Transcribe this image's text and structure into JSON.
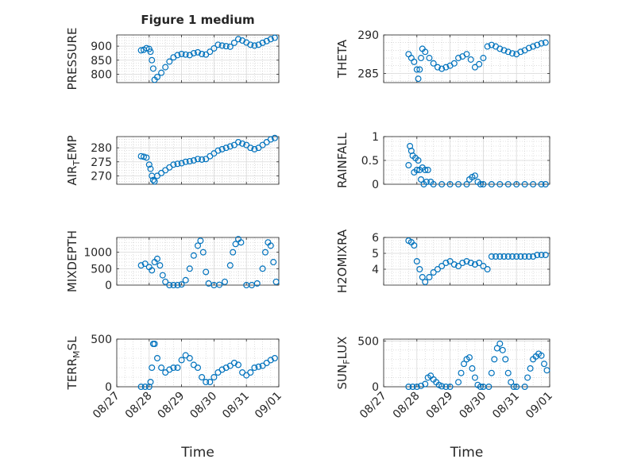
{
  "figure": {
    "title": "Figure 1 medium",
    "xlabel": "Time",
    "date_ticks": [
      "08/27",
      "08/28",
      "08/29",
      "08/30",
      "08/31",
      "09/01"
    ]
  },
  "chart_data": [
    {
      "type": "scatter",
      "ylabel": "PRESSURE",
      "ylim": [
        770,
        940
      ],
      "yticks": [
        800,
        850,
        900
      ],
      "ytick_labels": [
        "800",
        "850",
        "900"
      ],
      "xlim": [
        "08/27",
        "09/01"
      ],
      "x": [
        "08/27 18:00",
        "08/27 20:00",
        "08/27 22:00",
        "08/28 00:00",
        "08/28 01:00",
        "08/28 02:00",
        "08/28 03:00",
        "08/28 04:00",
        "08/28 06:00",
        "08/28 09:00",
        "08/28 12:00",
        "08/28 15:00",
        "08/28 18:00",
        "08/28 21:00",
        "08/29 00:00",
        "08/29 03:00",
        "08/29 06:00",
        "08/29 09:00",
        "08/29 12:00",
        "08/29 15:00",
        "08/29 18:00",
        "08/29 21:00",
        "08/30 00:00",
        "08/30 03:00",
        "08/30 06:00",
        "08/30 09:00",
        "08/30 12:00",
        "08/30 15:00",
        "08/30 18:00",
        "08/30 21:00",
        "08/31 00:00",
        "08/31 03:00",
        "08/31 06:00",
        "08/31 09:00",
        "08/31 12:00",
        "08/31 15:00",
        "08/31 18:00",
        "08/31 21:00"
      ],
      "y": [
        885,
        887,
        893,
        890,
        880,
        850,
        820,
        780,
        790,
        805,
        825,
        845,
        860,
        868,
        872,
        870,
        868,
        875,
        878,
        872,
        870,
        880,
        892,
        905,
        902,
        900,
        898,
        912,
        925,
        920,
        913,
        905,
        902,
        905,
        912,
        918,
        925,
        930
      ],
      "grid": true,
      "minor_grid": true,
      "color": "#0072BD",
      "marker": "open-circle"
    },
    {
      "type": "scatter",
      "ylabel": "THETA",
      "ylim": [
        283.8,
        290
      ],
      "yticks": [
        285,
        290
      ],
      "ytick_labels": [
        "285",
        "290"
      ],
      "xlim": [
        "08/27",
        "09/01"
      ],
      "x": [
        "08/27 18:00",
        "08/27 20:00",
        "08/27 22:00",
        "08/28 00:00",
        "08/28 01:00",
        "08/28 02:00",
        "08/28 03:00",
        "08/28 04:00",
        "08/28 06:00",
        "08/28 09:00",
        "08/28 12:00",
        "08/28 15:00",
        "08/28 18:00",
        "08/28 21:00",
        "08/29 00:00",
        "08/29 03:00",
        "08/29 06:00",
        "08/29 09:00",
        "08/29 12:00",
        "08/29 15:00",
        "08/29 18:00",
        "08/29 21:00",
        "08/30 00:00",
        "08/30 03:00",
        "08/30 06:00",
        "08/30 09:00",
        "08/30 12:00",
        "08/30 15:00",
        "08/30 18:00",
        "08/30 21:00",
        "08/31 00:00",
        "08/31 03:00",
        "08/31 06:00",
        "08/31 09:00",
        "08/31 12:00",
        "08/31 15:00",
        "08/31 18:00",
        "08/31 21:00"
      ],
      "y": [
        287.5,
        287,
        286.5,
        285.5,
        284.3,
        285.5,
        287,
        288.2,
        287.8,
        287,
        286.3,
        285.8,
        285.6,
        285.8,
        286,
        286.3,
        287,
        287.2,
        287.5,
        286.8,
        285.8,
        286.2,
        287,
        288.5,
        288.7,
        288.5,
        288.2,
        288,
        287.8,
        287.6,
        287.5,
        287.8,
        288,
        288.3,
        288.5,
        288.7,
        288.9,
        289
      ],
      "grid": true,
      "minor_grid": true,
      "color": "#0072BD",
      "marker": "open-circle"
    },
    {
      "type": "scatter",
      "ylabel": "AIR_TEMP",
      "ylim": [
        267,
        284
      ],
      "yticks": [
        270,
        275,
        280
      ],
      "ytick_labels": [
        "270",
        "275",
        "280"
      ],
      "xlim": [
        "08/27",
        "09/01"
      ],
      "x": [
        "08/27 18:00",
        "08/27 20:00",
        "08/27 22:00",
        "08/28 00:00",
        "08/28 01:00",
        "08/28 02:00",
        "08/28 03:00",
        "08/28 04:00",
        "08/28 06:00",
        "08/28 09:00",
        "08/28 12:00",
        "08/28 15:00",
        "08/28 18:00",
        "08/28 21:00",
        "08/29 00:00",
        "08/29 03:00",
        "08/29 06:00",
        "08/29 09:00",
        "08/29 12:00",
        "08/29 15:00",
        "08/29 18:00",
        "08/29 21:00",
        "08/30 00:00",
        "08/30 03:00",
        "08/30 06:00",
        "08/30 09:00",
        "08/30 12:00",
        "08/30 15:00",
        "08/30 18:00",
        "08/30 21:00",
        "08/31 00:00",
        "08/31 03:00",
        "08/31 06:00",
        "08/31 09:00",
        "08/31 12:00",
        "08/31 15:00",
        "08/31 18:00",
        "08/31 21:00"
      ],
      "y": [
        277,
        276.8,
        276.5,
        274,
        272.5,
        270,
        268.5,
        268,
        270,
        271,
        272,
        273,
        274,
        274.3,
        274.5,
        275,
        275.2,
        275.5,
        276,
        275.8,
        276,
        277,
        278,
        279,
        279.5,
        280,
        280.5,
        281,
        282,
        281.5,
        281,
        280,
        279.5,
        280,
        281,
        282,
        283,
        283.5
      ],
      "grid": true,
      "minor_grid": true,
      "color": "#0072BD",
      "marker": "open-circle"
    },
    {
      "type": "scatter",
      "ylabel": "RAINFALL",
      "ylim": [
        0,
        1
      ],
      "yticks": [
        0,
        0.5,
        1
      ],
      "ytick_labels": [
        "0",
        "0.5",
        "1"
      ],
      "xlim": [
        "08/27",
        "09/01"
      ],
      "x": [
        "08/27 18:00",
        "08/27 19:00",
        "08/27 20:00",
        "08/27 21:00",
        "08/27 22:00",
        "08/27 23:00",
        "08/28 00:00",
        "08/28 01:00",
        "08/28 02:00",
        "08/28 03:00",
        "08/28 04:00",
        "08/28 05:00",
        "08/28 06:00",
        "08/28 07:00",
        "08/28 08:00",
        "08/28 10:00",
        "08/28 12:00",
        "08/28 18:00",
        "08/29 00:00",
        "08/29 06:00",
        "08/29 12:00",
        "08/29 14:00",
        "08/29 16:00",
        "08/29 18:00",
        "08/29 20:00",
        "08/29 22:00",
        "08/30 00:00",
        "08/30 06:00",
        "08/30 12:00",
        "08/30 18:00",
        "08/31 00:00",
        "08/31 06:00",
        "08/31 12:00",
        "08/31 18:00",
        "08/31 21:00"
      ],
      "y": [
        0.4,
        0.8,
        0.7,
        0.6,
        0.25,
        0.55,
        0.3,
        0.5,
        0.3,
        0.1,
        0.35,
        0,
        0.3,
        0.05,
        0.3,
        0.05,
        0,
        0,
        0,
        0,
        0,
        0.1,
        0.15,
        0.18,
        0.05,
        0,
        0,
        0,
        0,
        0,
        0,
        0,
        0,
        0,
        0
      ],
      "grid": true,
      "minor_grid": true,
      "color": "#0072BD",
      "marker": "open-circle"
    },
    {
      "type": "scatter",
      "ylabel": "MIXDEPTH",
      "ylim": [
        0,
        1450
      ],
      "yticks": [
        0,
        500,
        1000
      ],
      "ytick_labels": [
        "0",
        "500",
        "1000"
      ],
      "xlim": [
        "08/27",
        "09/01"
      ],
      "x": [
        "08/27 18:00",
        "08/27 21:00",
        "08/28 00:00",
        "08/28 02:00",
        "08/28 04:00",
        "08/28 06:00",
        "08/28 08:00",
        "08/28 10:00",
        "08/28 12:00",
        "08/28 15:00",
        "08/28 18:00",
        "08/28 21:00",
        "08/29 00:00",
        "08/29 03:00",
        "08/29 06:00",
        "08/29 09:00",
        "08/29 12:00",
        "08/29 14:00",
        "08/29 16:00",
        "08/29 18:00",
        "08/29 20:00",
        "08/30 00:00",
        "08/30 04:00",
        "08/30 08:00",
        "08/30 12:00",
        "08/30 14:00",
        "08/30 16:00",
        "08/30 18:00",
        "08/30 20:00",
        "08/31 00:00",
        "08/31 04:00",
        "08/31 08:00",
        "08/31 12:00",
        "08/31 14:00",
        "08/31 16:00",
        "08/31 18:00",
        "08/31 20:00",
        "08/31 22:00"
      ],
      "y": [
        600,
        650,
        550,
        450,
        700,
        800,
        600,
        300,
        100,
        0,
        0,
        0,
        20,
        150,
        500,
        900,
        1200,
        1350,
        1000,
        400,
        50,
        0,
        10,
        100,
        600,
        1000,
        1250,
        1400,
        1300,
        0,
        0,
        50,
        500,
        1000,
        1300,
        1200,
        700,
        100
      ],
      "grid": true,
      "minor_grid": true,
      "color": "#0072BD",
      "marker": "open-circle"
    },
    {
      "type": "scatter",
      "ylabel": "H2OMIXRA",
      "ylim": [
        3,
        6
      ],
      "yticks": [
        4,
        5,
        6
      ],
      "ytick_labels": [
        "4",
        "5",
        "6"
      ],
      "xlim": [
        "08/27",
        "09/01"
      ],
      "x": [
        "08/27 18:00",
        "08/27 20:00",
        "08/27 22:00",
        "08/28 00:00",
        "08/28 02:00",
        "08/28 04:00",
        "08/28 06:00",
        "08/28 09:00",
        "08/28 12:00",
        "08/28 15:00",
        "08/28 18:00",
        "08/28 21:00",
        "08/29 00:00",
        "08/29 03:00",
        "08/29 06:00",
        "08/29 09:00",
        "08/29 12:00",
        "08/29 15:00",
        "08/29 18:00",
        "08/29 21:00",
        "08/30 00:00",
        "08/30 03:00",
        "08/30 06:00",
        "08/30 09:00",
        "08/30 12:00",
        "08/30 15:00",
        "08/30 18:00",
        "08/30 21:00",
        "08/31 00:00",
        "08/31 03:00",
        "08/31 06:00",
        "08/31 09:00",
        "08/31 12:00",
        "08/31 15:00",
        "08/31 18:00",
        "08/31 21:00"
      ],
      "y": [
        5.8,
        5.7,
        5.5,
        4.5,
        4,
        3.5,
        3.2,
        3.5,
        3.8,
        4,
        4.2,
        4.4,
        4.5,
        4.3,
        4.2,
        4.4,
        4.5,
        4.4,
        4.3,
        4.4,
        4.2,
        4,
        4.8,
        4.8,
        4.8,
        4.8,
        4.8,
        4.8,
        4.8,
        4.8,
        4.8,
        4.8,
        4.8,
        4.9,
        4.9,
        4.9
      ],
      "grid": true,
      "minor_grid": true,
      "color": "#0072BD",
      "marker": "open-circle"
    },
    {
      "type": "scatter",
      "ylabel": "TERR_MSL",
      "ylim": [
        0,
        500
      ],
      "yticks": [
        0,
        500
      ],
      "ytick_labels": [
        "0",
        "500"
      ],
      "xlim": [
        "08/27",
        "09/01"
      ],
      "x": [
        "08/27 18:00",
        "08/27 21:00",
        "08/28 00:00",
        "08/28 01:00",
        "08/28 02:00",
        "08/28 03:00",
        "08/28 04:00",
        "08/28 06:00",
        "08/28 09:00",
        "08/28 12:00",
        "08/28 15:00",
        "08/28 18:00",
        "08/28 21:00",
        "08/29 00:00",
        "08/29 03:00",
        "08/29 06:00",
        "08/29 09:00",
        "08/29 12:00",
        "08/29 15:00",
        "08/29 18:00",
        "08/29 21:00",
        "08/30 00:00",
        "08/30 03:00",
        "08/30 06:00",
        "08/30 09:00",
        "08/30 12:00",
        "08/30 15:00",
        "08/30 18:00",
        "08/30 21:00",
        "08/31 00:00",
        "08/31 03:00",
        "08/31 06:00",
        "08/31 09:00",
        "08/31 12:00",
        "08/31 15:00",
        "08/31 18:00",
        "08/31 21:00"
      ],
      "y": [
        0,
        0,
        0,
        50,
        200,
        450,
        450,
        300,
        200,
        150,
        180,
        200,
        200,
        280,
        330,
        300,
        230,
        200,
        100,
        50,
        50,
        100,
        150,
        180,
        200,
        220,
        250,
        230,
        150,
        120,
        150,
        200,
        210,
        220,
        250,
        280,
        300
      ],
      "grid": true,
      "minor_grid": true,
      "color": "#0072BD",
      "marker": "open-circle"
    },
    {
      "type": "scatter",
      "ylabel": "SUN_FLUX",
      "ylim": [
        0,
        520
      ],
      "yticks": [
        0,
        500
      ],
      "ytick_labels": [
        "0",
        "500"
      ],
      "xlim": [
        "08/27",
        "09/01"
      ],
      "x": [
        "08/27 18:00",
        "08/27 21:00",
        "08/28 00:00",
        "08/28 03:00",
        "08/28 06:00",
        "08/28 08:00",
        "08/28 10:00",
        "08/28 12:00",
        "08/28 14:00",
        "08/28 16:00",
        "08/28 18:00",
        "08/28 21:00",
        "08/29 00:00",
        "08/29 06:00",
        "08/29 08:00",
        "08/29 10:00",
        "08/29 12:00",
        "08/29 14:00",
        "08/29 16:00",
        "08/29 18:00",
        "08/29 20:00",
        "08/29 22:00",
        "08/30 00:00",
        "08/30 04:00",
        "08/30 06:00",
        "08/30 08:00",
        "08/30 10:00",
        "08/30 12:00",
        "08/30 14:00",
        "08/30 16:00",
        "08/30 18:00",
        "08/30 20:00",
        "08/30 22:00",
        "08/31 00:00",
        "08/31 06:00",
        "08/31 08:00",
        "08/31 10:00",
        "08/31 12:00",
        "08/31 14:00",
        "08/31 16:00",
        "08/31 18:00",
        "08/31 20:00",
        "08/31 22:00"
      ],
      "y": [
        0,
        0,
        0,
        10,
        30,
        100,
        120,
        80,
        50,
        20,
        5,
        0,
        0,
        50,
        150,
        250,
        300,
        320,
        200,
        100,
        20,
        0,
        0,
        0,
        150,
        300,
        420,
        470,
        400,
        300,
        150,
        50,
        0,
        0,
        0,
        100,
        200,
        300,
        330,
        360,
        340,
        250,
        180
      ],
      "grid": true,
      "minor_grid": true,
      "color": "#0072BD",
      "marker": "open-circle"
    }
  ]
}
